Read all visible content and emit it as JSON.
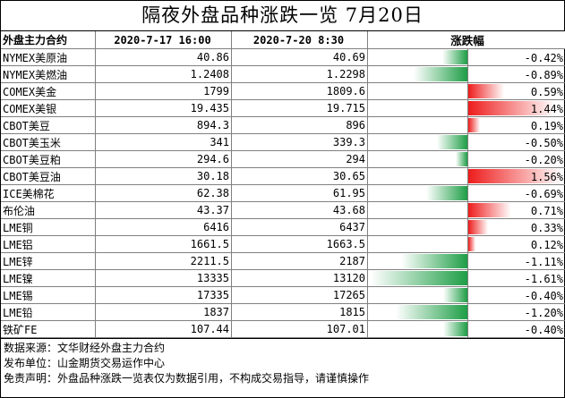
{
  "title": "隔夜外盘品种涨跌一览 7月20日",
  "header": {
    "name": "外盘主力合约",
    "date1": "2020-7-17 16:00",
    "date2": "2020-7-20 8:30",
    "change": "涨跌幅"
  },
  "colors": {
    "up": "#ee1c1c",
    "down": "#1e9e46"
  },
  "rows": [
    {
      "name": "NYMEX美原油",
      "v1": "40.86",
      "v2": "40.69",
      "pct": "-0.42%",
      "change": -0.42
    },
    {
      "name": "NYMEX美燃油",
      "v1": "1.2408",
      "v2": "1.2298",
      "pct": "-0.89%",
      "change": -0.89
    },
    {
      "name": "COMEX美金",
      "v1": "1799",
      "v2": "1809.6",
      "pct": "0.59%",
      "change": 0.59
    },
    {
      "name": "COMEX美银",
      "v1": "19.435",
      "v2": "19.715",
      "pct": "1.44%",
      "change": 1.44
    },
    {
      "name": "CBOT美豆",
      "v1": "894.3",
      "v2": "896",
      "pct": "0.19%",
      "change": 0.19
    },
    {
      "name": "CBOT美玉米",
      "v1": "341",
      "v2": "339.3",
      "pct": "-0.50%",
      "change": -0.5
    },
    {
      "name": "CBOT美豆粕",
      "v1": "294.6",
      "v2": "294",
      "pct": "-0.20%",
      "change": -0.2
    },
    {
      "name": "CBOT美豆油",
      "v1": "30.18",
      "v2": "30.65",
      "pct": "1.56%",
      "change": 1.56
    },
    {
      "name": "ICE美棉花",
      "v1": "62.38",
      "v2": "61.95",
      "pct": "-0.69%",
      "change": -0.69
    },
    {
      "name": "布伦油",
      "v1": "43.37",
      "v2": "43.68",
      "pct": "0.71%",
      "change": 0.71
    },
    {
      "name": "LME铜",
      "v1": "6416",
      "v2": "6437",
      "pct": "0.33%",
      "change": 0.33
    },
    {
      "name": "LME铝",
      "v1": "1661.5",
      "v2": "1663.5",
      "pct": "0.12%",
      "change": 0.12
    },
    {
      "name": "LME锌",
      "v1": "2211.5",
      "v2": "2187",
      "pct": "-1.11%",
      "change": -1.11
    },
    {
      "name": "LME镍",
      "v1": "13335",
      "v2": "13120",
      "pct": "-1.61%",
      "change": -1.61
    },
    {
      "name": "LME锡",
      "v1": "17335",
      "v2": "17265",
      "pct": "-0.40%",
      "change": -0.4
    },
    {
      "name": "LME铅",
      "v1": "1837",
      "v2": "1815",
      "pct": "-1.20%",
      "change": -1.2
    },
    {
      "name": "铁矿FE",
      "v1": "107.44",
      "v2": "107.01",
      "pct": "-0.40%",
      "change": -0.4
    }
  ],
  "footer": {
    "source": "数据来源：文华财经外盘主力合约",
    "publisher": "发布单位：山金期货交易运作中心",
    "disclaimer": "免责声明：外盘品种涨跌一览表仅为数据引用，不构成交易指导，请谨慎操作"
  }
}
